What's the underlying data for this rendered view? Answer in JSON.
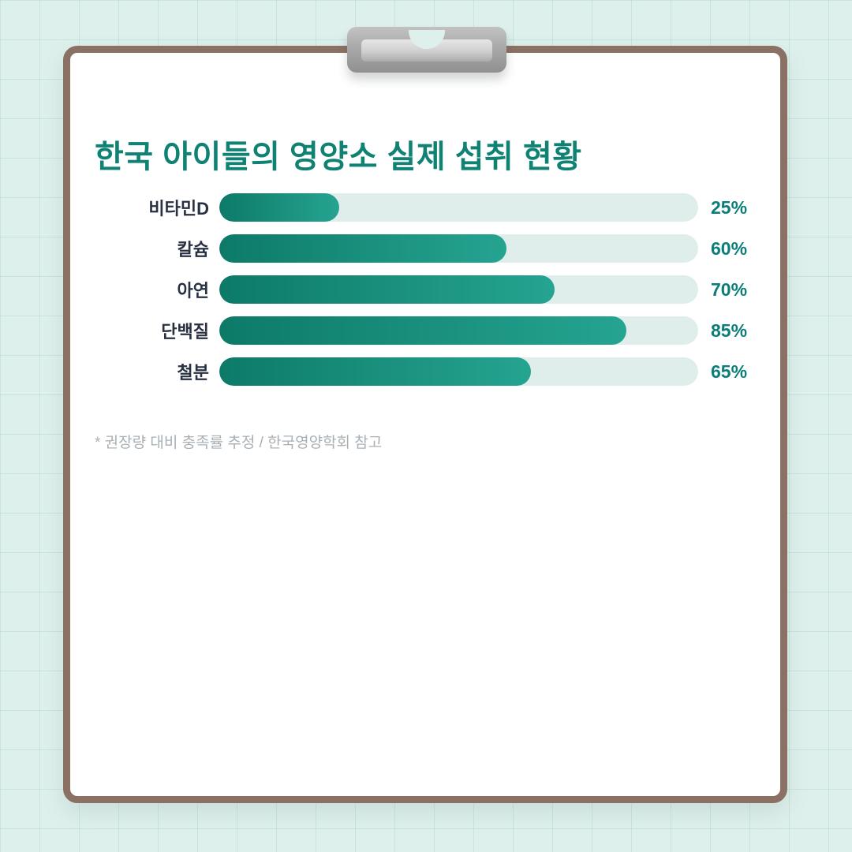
{
  "colors": {
    "background": "#def0ec",
    "grid_line": "#bfe0d9",
    "board_border": "#8b7164",
    "board_fill": "#ffffff",
    "title_text": "#0f8273",
    "label_text": "#273142",
    "value_text": "#0b7e79",
    "bar_track": "#dfeeeb",
    "bar_fill_start": "#0d7a68",
    "bar_fill_end": "#25a491",
    "clip_gray": "#a9a9a9",
    "footnote_text": "#a9b0b5"
  },
  "chart_data": {
    "type": "bar",
    "orientation": "horizontal",
    "title": "한국 아이들의 영양소 실제 섭취 현황",
    "categories": [
      "비타민D",
      "칼슘",
      "아연",
      "단백질",
      "철분"
    ],
    "values": [
      25,
      60,
      70,
      85,
      65
    ],
    "value_labels": [
      "25%",
      "60%",
      "70%",
      "85%",
      "65%"
    ],
    "unit": "%",
    "xlim": [
      0,
      100
    ],
    "grid": false,
    "legend": "none",
    "footnote": "* 권장량 대비 충족률 추정 / 한국영양학회 참고"
  }
}
